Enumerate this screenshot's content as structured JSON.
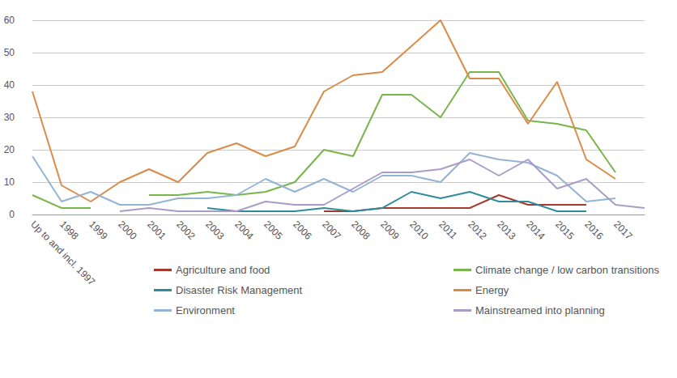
{
  "chart_data": {
    "type": "line",
    "categories": [
      "Up to and incl. 1997",
      "1998",
      "1999",
      "2000",
      "2001",
      "2002",
      "2003",
      "2004",
      "2005",
      "2006",
      "2007",
      "2008",
      "2009",
      "2010",
      "2011",
      "2012",
      "2013",
      "2014",
      "2015",
      "2016",
      "2017",
      null
    ],
    "series": [
      {
        "name": "Agriculture and food",
        "color": "#a3392f",
        "values": [
          null,
          null,
          null,
          null,
          null,
          null,
          null,
          null,
          null,
          null,
          1,
          1,
          2,
          2,
          2,
          2,
          6,
          3,
          3,
          3,
          null,
          null
        ]
      },
      {
        "name": "Climate change / low carbon transitions",
        "color": "#78b54a",
        "values": [
          6,
          2,
          2,
          null,
          6,
          6,
          7,
          6,
          7,
          10,
          20,
          18,
          37,
          37,
          30,
          44,
          44,
          29,
          28,
          26,
          13,
          null
        ]
      },
      {
        "name": "Disaster Risk Management",
        "color": "#2f8c99",
        "values": [
          null,
          null,
          null,
          null,
          null,
          null,
          2,
          1,
          1,
          1,
          2,
          1,
          2,
          7,
          5,
          7,
          4,
          4,
          1,
          1,
          null,
          null
        ]
      },
      {
        "name": "Energy",
        "color": "#d98b48",
        "values": [
          38,
          9,
          4,
          10,
          14,
          10,
          19,
          22,
          18,
          21,
          38,
          43,
          44,
          52,
          60,
          42,
          42,
          28,
          41,
          17,
          11,
          null
        ]
      },
      {
        "name": "Environment",
        "color": "#93b4d4",
        "values": [
          18,
          4,
          7,
          3,
          3,
          5,
          5,
          6,
          11,
          7,
          11,
          7,
          12,
          12,
          10,
          19,
          17,
          16,
          12,
          4,
          5,
          null
        ]
      },
      {
        "name": "Mainstreamed into planning",
        "color": "#aa9cc8",
        "values": [
          null,
          null,
          null,
          1,
          2,
          1,
          1,
          1,
          4,
          3,
          3,
          8,
          13,
          13,
          14,
          17,
          12,
          17,
          8,
          11,
          3,
          2
        ]
      }
    ],
    "ylim": [
      0,
      60
    ],
    "yticks": [
      0,
      10,
      20,
      30,
      40,
      50,
      60
    ],
    "grid": true,
    "legend": "bottom"
  }
}
